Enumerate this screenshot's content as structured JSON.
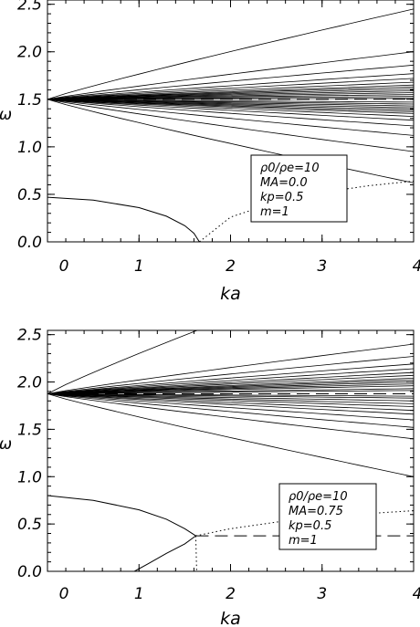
{
  "chart_data": [
    {
      "type": "line",
      "title": "",
      "xlabel": "ka",
      "ylabel": "ω",
      "xlim": [
        0,
        4
      ],
      "ylim": [
        0,
        2.5
      ],
      "xticks": [
        "0",
        "1",
        "2",
        "3",
        "4"
      ],
      "yticks": [
        "0.0",
        "0.5",
        "1.0",
        "1.5",
        "2.0",
        "2.5"
      ],
      "legend": {
        "placement": "bottom-right",
        "lines": [
          "ρ0/ρe=10",
          "MA=0.0",
          "kp=0.5",
          "m=1"
        ]
      },
      "dashed_levels": [
        1.5
      ],
      "fan": {
        "origin": [
          0,
          1.5
        ],
        "end_values_at_x4": [
          2.45,
          2.0,
          1.86,
          1.77,
          1.72,
          1.68,
          1.65,
          1.63,
          1.61,
          1.59,
          1.57,
          1.55,
          1.53,
          1.51,
          1.47,
          1.45,
          1.43,
          1.41,
          1.39,
          1.37,
          1.35,
          1.32,
          1.28,
          1.22,
          1.12,
          0.95,
          0.62
        ]
      },
      "series": [
        {
          "style": "solid",
          "x": [
            0,
            0.5,
            1.0,
            1.3,
            1.5,
            1.6,
            1.66
          ],
          "y": [
            0.47,
            0.44,
            0.36,
            0.27,
            0.17,
            0.09,
            0.0
          ]
        },
        {
          "style": "dotted",
          "x": [
            1.66,
            2.0,
            2.5,
            3.0,
            3.5,
            4.0
          ],
          "y": [
            0.0,
            0.26,
            0.42,
            0.52,
            0.59,
            0.64
          ]
        }
      ]
    },
    {
      "type": "line",
      "title": "",
      "xlabel": "ka",
      "ylabel": "ω",
      "xlim": [
        0,
        4
      ],
      "ylim": [
        0,
        2.5
      ],
      "xticks": [
        "0",
        "1",
        "2",
        "3",
        "4"
      ],
      "yticks": [
        "0.0",
        "0.5",
        "1.0",
        "1.5",
        "2.0",
        "2.5"
      ],
      "legend": {
        "placement": "bottom-right",
        "lines": [
          "ρ0/ρe=10",
          "MA=0.75",
          "kp=0.5",
          "m=1"
        ]
      },
      "dashed_levels": [
        1.875,
        0.375
      ],
      "fan": {
        "origin": [
          0,
          1.875
        ],
        "end_values_at_x4": [
          3.4,
          2.4,
          2.27,
          2.19,
          2.14,
          2.1,
          2.07,
          2.04,
          2.02,
          2.0,
          1.98,
          1.96,
          1.93,
          1.91,
          1.85,
          1.83,
          1.8,
          1.77,
          1.74,
          1.7,
          1.66,
          1.6,
          1.52,
          1.4,
          1.0
        ]
      },
      "series": [
        {
          "style": "solid",
          "x": [
            0,
            0.5,
            1.0,
            1.3,
            1.5,
            1.62
          ],
          "y": [
            0.8,
            0.75,
            0.65,
            0.55,
            0.45,
            0.375
          ]
        },
        {
          "style": "solid",
          "x": [
            1.62,
            1.5,
            1.3,
            1.1,
            0.95
          ],
          "y": [
            0.375,
            0.29,
            0.19,
            0.08,
            0.0
          ]
        },
        {
          "style": "dotted",
          "x": [
            1.62,
            2.0,
            2.5,
            3.0,
            3.5,
            4.0
          ],
          "y": [
            0.375,
            0.45,
            0.52,
            0.57,
            0.61,
            0.64
          ]
        },
        {
          "style": "dotted",
          "x": [
            1.62,
            1.63
          ],
          "y": [
            0.375,
            0.0
          ]
        }
      ]
    }
  ]
}
